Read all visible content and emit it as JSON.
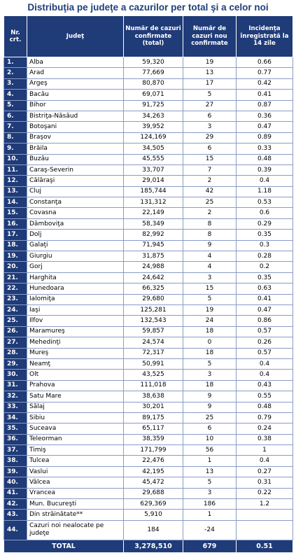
{
  "title": "Distribuţia pe judeţe a cazurilor per total şi a celor noi",
  "headers": {
    "nr": "Nr. crt.",
    "judet": "Judeţ",
    "confirmate": "Număr de cazuri confirmate (total)",
    "noi": "Număr de cazuri nou confirmate",
    "incidenta": "Incidenţa înregistrată la 14 zile"
  },
  "rows": [
    {
      "nr": "1.",
      "judet": "Alba",
      "total": "59,320",
      "noi": "19",
      "incidenta": "0.66"
    },
    {
      "nr": "2.",
      "judet": "Arad",
      "total": "77,669",
      "noi": "13",
      "incidenta": "0.77"
    },
    {
      "nr": "3.",
      "judet": "Argeş",
      "total": "80,870",
      "noi": "17",
      "incidenta": "0.42"
    },
    {
      "nr": "4.",
      "judet": "Bacău",
      "total": "69,071",
      "noi": "5",
      "incidenta": "0.41"
    },
    {
      "nr": "5.",
      "judet": "Bihor",
      "total": "91,725",
      "noi": "27",
      "incidenta": "0.87"
    },
    {
      "nr": "6.",
      "judet": "Bistriţa-Năsăud",
      "total": "34,263",
      "noi": "6",
      "incidenta": "0.36"
    },
    {
      "nr": "7.",
      "judet": "Botoşani",
      "total": "39,952",
      "noi": "3",
      "incidenta": "0.47"
    },
    {
      "nr": "8.",
      "judet": "Braşov",
      "total": "124,169",
      "noi": "29",
      "incidenta": "0.89"
    },
    {
      "nr": "9.",
      "judet": "Brăila",
      "total": "34,505",
      "noi": "6",
      "incidenta": "0.33"
    },
    {
      "nr": "10.",
      "judet": "Buzău",
      "total": "45,555",
      "noi": "15",
      "incidenta": "0.48"
    },
    {
      "nr": "11.",
      "judet": "Caraş-Severin",
      "total": "33,707",
      "noi": "7",
      "incidenta": "0.39"
    },
    {
      "nr": "12.",
      "judet": "Călăraşi",
      "total": "29,014",
      "noi": "2",
      "incidenta": "0.4"
    },
    {
      "nr": "13.",
      "judet": "Cluj",
      "total": "185,744",
      "noi": "42",
      "incidenta": "1.18"
    },
    {
      "nr": "14.",
      "judet": "Constanţa",
      "total": "131,312",
      "noi": "25",
      "incidenta": "0.53"
    },
    {
      "nr": "15.",
      "judet": "Covasna",
      "total": "22,149",
      "noi": "2",
      "incidenta": "0.6"
    },
    {
      "nr": "16.",
      "judet": "Dâmboviţa",
      "total": "58,349",
      "noi": "8",
      "incidenta": "0.29"
    },
    {
      "nr": "17.",
      "judet": "Dolj",
      "total": "82,992",
      "noi": "8",
      "incidenta": "0.35"
    },
    {
      "nr": "18.",
      "judet": "Galaţi",
      "total": "71,945",
      "noi": "9",
      "incidenta": "0.3"
    },
    {
      "nr": "19.",
      "judet": "Giurgiu",
      "total": "31,875",
      "noi": "4",
      "incidenta": "0.28"
    },
    {
      "nr": "20.",
      "judet": "Gorj",
      "total": "24,988",
      "noi": "4",
      "incidenta": "0.2"
    },
    {
      "nr": "21.",
      "judet": "Harghita",
      "total": "24,642",
      "noi": "3",
      "incidenta": "0.35"
    },
    {
      "nr": "22.",
      "judet": "Hunedoara",
      "total": "66,325",
      "noi": "15",
      "incidenta": "0.63"
    },
    {
      "nr": "23.",
      "judet": "Ialomiţa",
      "total": "29,680",
      "noi": "5",
      "incidenta": "0.41"
    },
    {
      "nr": "24.",
      "judet": "Iaşi",
      "total": "125,281",
      "noi": "19",
      "incidenta": "0.47"
    },
    {
      "nr": "25.",
      "judet": "Ilfov",
      "total": "132,543",
      "noi": "24",
      "incidenta": "0.86"
    },
    {
      "nr": "26.",
      "judet": "Maramureş",
      "total": "59,857",
      "noi": "18",
      "incidenta": "0.57"
    },
    {
      "nr": "27.",
      "judet": "Mehedinţi",
      "total": "24,574",
      "noi": "0",
      "incidenta": "0.26"
    },
    {
      "nr": "28.",
      "judet": "Mureş",
      "total": "72,317",
      "noi": "18",
      "incidenta": "0.57"
    },
    {
      "nr": "29.",
      "judet": "Neamţ",
      "total": "50,991",
      "noi": "5",
      "incidenta": "0.4"
    },
    {
      "nr": "30.",
      "judet": "Olt",
      "total": "43,525",
      "noi": "3",
      "incidenta": "0.4"
    },
    {
      "nr": "31.",
      "judet": "Prahova",
      "total": "111,018",
      "noi": "18",
      "incidenta": "0.43"
    },
    {
      "nr": "32.",
      "judet": "Satu Mare",
      "total": "38,638",
      "noi": "9",
      "incidenta": "0.55"
    },
    {
      "nr": "33.",
      "judet": "Sălaj",
      "total": "30,201",
      "noi": "9",
      "incidenta": "0.48"
    },
    {
      "nr": "34.",
      "judet": "Sibiu",
      "total": "89,175",
      "noi": "25",
      "incidenta": "0.79"
    },
    {
      "nr": "35.",
      "judet": "Suceava",
      "total": "65,117",
      "noi": "6",
      "incidenta": "0.24"
    },
    {
      "nr": "36.",
      "judet": "Teleorman",
      "total": "38,359",
      "noi": "10",
      "incidenta": "0.38"
    },
    {
      "nr": "37.",
      "judet": "Timiş",
      "total": "171,799",
      "noi": "56",
      "incidenta": "1"
    },
    {
      "nr": "38.",
      "judet": "Tulcea",
      "total": "22,476",
      "noi": "1",
      "incidenta": "0.4"
    },
    {
      "nr": "39.",
      "judet": "Vaslui",
      "total": "42,195",
      "noi": "13",
      "incidenta": "0.27"
    },
    {
      "nr": "40.",
      "judet": "Vâlcea",
      "total": "45,472",
      "noi": "5",
      "incidenta": "0.31"
    },
    {
      "nr": "41.",
      "judet": "Vrancea",
      "total": "29,688",
      "noi": "3",
      "incidenta": "0.22"
    },
    {
      "nr": "42.",
      "judet": "Mun. Bucureşti",
      "total": "629,369",
      "noi": "186",
      "incidenta": "1.2"
    },
    {
      "nr": "43.",
      "judet": "Din străinătate**",
      "total": "5,910",
      "noi": "1",
      "incidenta": ""
    },
    {
      "nr": "44.",
      "judet": "Cazuri noi nealocate pe judeţe",
      "total": "184",
      "noi": "-24",
      "incidenta": ""
    }
  ],
  "total": {
    "label": "TOTAL",
    "confirmate": "3,278,510",
    "noi": "679",
    "incidenta": "0.51"
  }
}
